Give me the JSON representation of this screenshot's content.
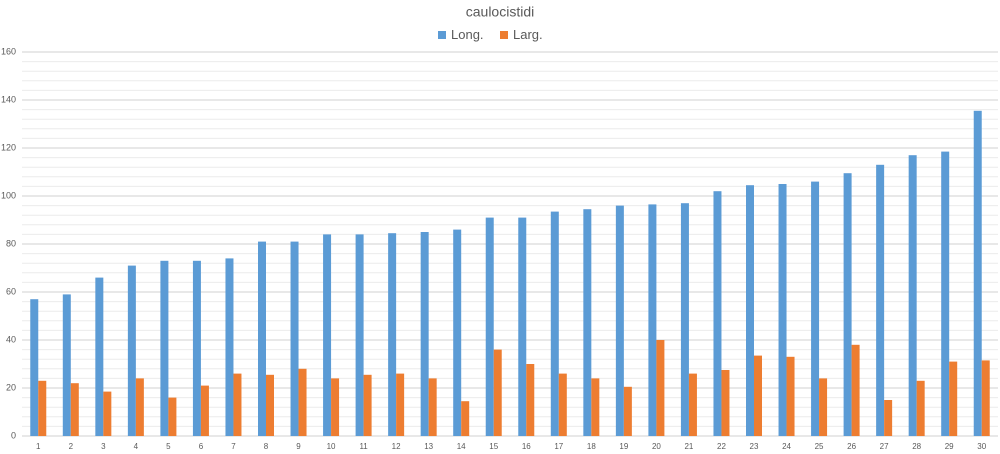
{
  "chart_data": {
    "type": "bar",
    "title": "caulocistidi",
    "categories": [
      "1",
      "2",
      "3",
      "4",
      "5",
      "6",
      "7",
      "8",
      "9",
      "10",
      "11",
      "12",
      "13",
      "14",
      "15",
      "16",
      "17",
      "18",
      "19",
      "20",
      "21",
      "22",
      "23",
      "24",
      "25",
      "26",
      "27",
      "28",
      "29",
      "30"
    ],
    "series": [
      {
        "name": "Long.",
        "color": "#5b9bd5",
        "values": [
          57,
          59,
          66,
          71,
          73,
          73,
          74,
          81,
          81,
          84,
          84,
          84.5,
          85,
          86,
          91,
          91,
          93.5,
          94.5,
          96,
          96.5,
          97,
          102,
          104.5,
          105,
          106,
          109.5,
          113,
          117,
          118.5,
          135.5
        ]
      },
      {
        "name": "Larg.",
        "color": "#ed7d31",
        "values": [
          23,
          22,
          18.5,
          24,
          16,
          21,
          26,
          25.5,
          28,
          24,
          25.5,
          26,
          24,
          14.5,
          36,
          30,
          26,
          24,
          20.5,
          40,
          26,
          27.5,
          33.5,
          33,
          24,
          38,
          15,
          23,
          31,
          31.5
        ]
      }
    ],
    "ylim": [
      0,
      160
    ],
    "yticks": [
      0,
      20,
      40,
      60,
      80,
      100,
      120,
      140,
      160
    ],
    "minor_yticks": [
      4,
      8,
      12,
      16,
      24,
      28,
      32,
      36,
      44,
      48,
      52,
      56,
      64,
      68,
      72,
      76,
      84,
      88,
      92,
      96,
      104,
      108,
      112,
      116,
      124,
      128,
      132,
      136,
      144,
      148,
      152,
      156
    ],
    "grid": true,
    "legend": "top"
  }
}
